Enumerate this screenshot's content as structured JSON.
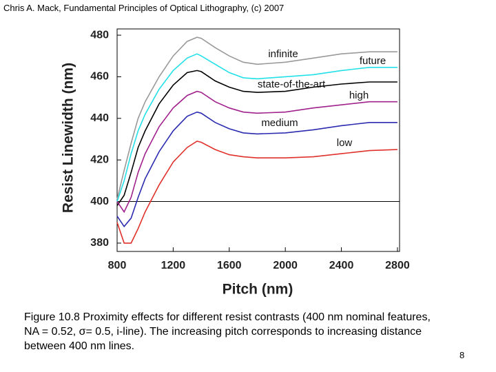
{
  "header": "Chris A. Mack, Fundamental Principles of Optical Lithography, (c) 2007",
  "chart_data": {
    "type": "line",
    "xlabel": "Pitch (nm)",
    "ylabel": "Resist Linewidth (nm)",
    "x": [
      800,
      850,
      900,
      950,
      1000,
      1100,
      1200,
      1300,
      1370,
      1400,
      1500,
      1600,
      1700,
      1800,
      2000,
      2200,
      2400,
      2600,
      2800
    ],
    "series": [
      {
        "name": "infinite",
        "color": "#999999",
        "values": [
          401,
          415,
          428,
          440,
          448,
          460,
          470,
          477,
          479,
          478.5,
          474,
          470,
          467,
          466,
          467,
          469,
          471,
          472,
          472
        ]
      },
      {
        "name": "future",
        "color": "#22e0e8",
        "values": [
          400,
          410,
          423,
          434,
          442,
          454,
          463,
          469,
          471,
          470,
          466,
          462,
          459.5,
          459,
          460,
          461,
          463,
          464.5,
          464.5
        ]
      },
      {
        "name": "state-of-the-art",
        "color": "#000000",
        "values": [
          398,
          403,
          414,
          426,
          434,
          447,
          456,
          462,
          463,
          462.5,
          458,
          455,
          453,
          452.5,
          453,
          455,
          456.5,
          457.5,
          457.5
        ]
      },
      {
        "name": "high",
        "color": "#a0208c",
        "values": [
          400,
          395,
          402,
          414,
          423,
          436,
          445,
          451,
          453,
          452.5,
          448,
          445,
          443,
          442.5,
          443,
          445,
          446.5,
          448,
          448
        ]
      },
      {
        "name": "medium",
        "color": "#2a2ab0",
        "values": [
          393,
          388,
          392,
          402,
          411,
          424,
          434,
          441,
          443,
          442.5,
          438,
          435,
          433,
          432.5,
          433,
          434.5,
          436.5,
          438,
          438
        ]
      },
      {
        "name": "low",
        "color": "#e0302a",
        "values": [
          390,
          380,
          380,
          387,
          395,
          408,
          419,
          426,
          429,
          428.5,
          425,
          422.5,
          421.5,
          421,
          421,
          421.5,
          423,
          424.5,
          425
        ]
      }
    ],
    "reference_line": 400,
    "xlim": [
      800,
      2815
    ],
    "ylim": [
      376,
      483
    ],
    "xticks": [
      800,
      1200,
      1600,
      2000,
      2400,
      2800
    ],
    "yticks": [
      380,
      400,
      420,
      440,
      460,
      480
    ]
  },
  "caption": "Figure 10.8  Proximity effects for different resist contrasts (400 nm nominal features, NA = 0.52, σ= 0.5, i-line).  The increasing pitch corresponds to increasing distance between 400 nm lines.",
  "page_number": "8"
}
